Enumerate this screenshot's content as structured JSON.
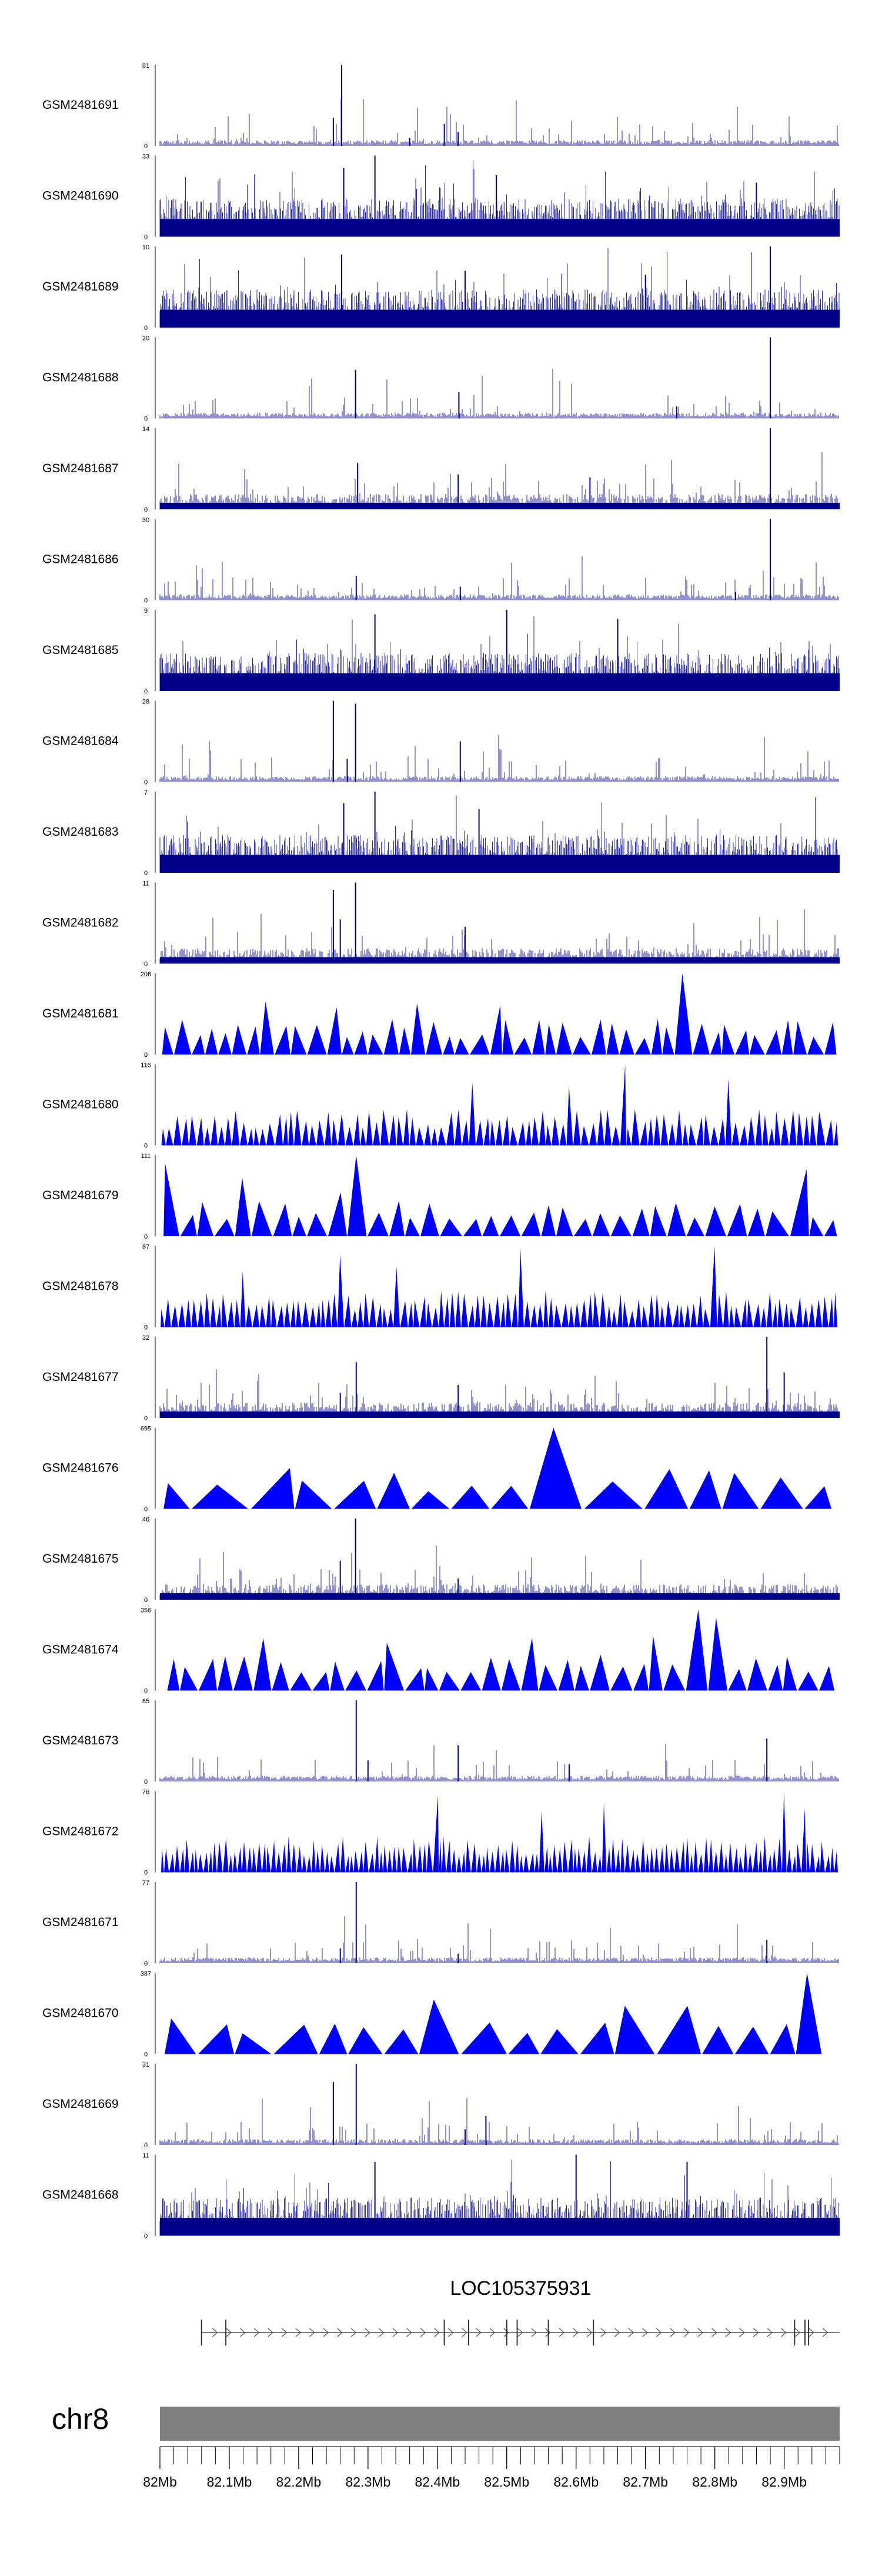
{
  "chart_data": {
    "type": "genome-track-area",
    "chromosome": "chr8",
    "x_range_mb": [
      82.0,
      82.98
    ],
    "x_ticks_mb": [
      82.0,
      82.1,
      82.2,
      82.3,
      82.4,
      82.5,
      82.6,
      82.7,
      82.8,
      82.9
    ],
    "x_tick_labels": [
      "82Mb",
      "82.1Mb",
      "82.2Mb",
      "82.3Mb",
      "82.4Mb",
      "82.5Mb",
      "82.6Mb",
      "82.7Mb",
      "82.8Mb",
      "82.9Mb"
    ],
    "gene": {
      "name": "LOC105375931",
      "start_mb": 82.06,
      "end_mb": 82.98,
      "strand": "+",
      "exons_mb": [
        82.06,
        82.095,
        82.41,
        82.445,
        82.5,
        82.515,
        82.56,
        82.625,
        82.915,
        82.93,
        82.935
      ]
    },
    "series": [
      {
        "name": "GSM2481691",
        "ymax": 81,
        "style": "spiky",
        "peaks": [
          [
            82.262,
            81
          ],
          [
            82.25,
            28
          ],
          [
            82.41,
            22
          ],
          [
            82.43,
            14
          ],
          [
            82.36,
            8
          ]
        ]
      },
      {
        "name": "GSM2481690",
        "ymax": 33,
        "style": "dense",
        "peaks": [
          [
            82.31,
            33
          ],
          [
            82.265,
            28
          ],
          [
            82.485,
            25
          ],
          [
            82.86,
            22
          ]
        ]
      },
      {
        "name": "GSM2481689",
        "ymax": 10,
        "style": "dense",
        "peaks": [
          [
            82.88,
            10
          ],
          [
            82.262,
            9
          ],
          [
            82.44,
            7
          ],
          [
            82.7,
            6.5
          ]
        ]
      },
      {
        "name": "GSM2481688",
        "ymax": 20,
        "style": "spiky",
        "peaks": [
          [
            82.88,
            20
          ],
          [
            82.282,
            12
          ],
          [
            82.431,
            6.5
          ],
          [
            82.745,
            3
          ]
        ]
      },
      {
        "name": "GSM2481687",
        "ymax": 14,
        "style": "noisy",
        "peaks": [
          [
            82.88,
            14
          ],
          [
            82.285,
            8
          ],
          [
            82.43,
            6
          ],
          [
            82.62,
            5.5
          ]
        ]
      },
      {
        "name": "GSM2481686",
        "ymax": 30,
        "style": "spiky",
        "peaks": [
          [
            82.88,
            30
          ],
          [
            82.283,
            9
          ],
          [
            82.433,
            5
          ],
          [
            82.83,
            3
          ]
        ]
      },
      {
        "name": "GSM2481685",
        "ymax": 9,
        "style": "dense",
        "peaks": [
          [
            82.5,
            9
          ],
          [
            82.31,
            8.5
          ],
          [
            82.66,
            8
          ]
        ]
      },
      {
        "name": "GSM2481684",
        "ymax": 28,
        "style": "spiky",
        "peaks": [
          [
            82.25,
            28
          ],
          [
            82.282,
            27
          ],
          [
            82.433,
            14
          ],
          [
            82.27,
            8
          ]
        ]
      },
      {
        "name": "GSM2481683",
        "ymax": 7,
        "style": "dense",
        "peaks": [
          [
            82.31,
            7
          ],
          [
            82.265,
            6
          ],
          [
            82.46,
            5.5
          ]
        ]
      },
      {
        "name": "GSM2481682",
        "ymax": 11,
        "style": "noisy",
        "peaks": [
          [
            82.282,
            11
          ],
          [
            82.25,
            10
          ],
          [
            82.26,
            6
          ],
          [
            82.44,
            5
          ]
        ]
      },
      {
        "name": "GSM2481681",
        "ymax": 206,
        "style": "triangles",
        "count": 46,
        "peaks": [
          [
            82.755,
            206
          ],
          [
            82.15,
            135
          ],
          [
            82.37,
            130
          ],
          [
            82.255,
            120
          ],
          [
            82.49,
            125
          ]
        ]
      },
      {
        "name": "GSM2481680",
        "ymax": 116,
        "style": "triangles",
        "count": 95,
        "peaks": [
          [
            82.67,
            116
          ],
          [
            82.82,
            95
          ],
          [
            82.45,
            90
          ],
          [
            82.59,
            85
          ]
        ]
      },
      {
        "name": "GSM2481679",
        "ymax": 111,
        "style": "triangles",
        "count": 36,
        "peaks": [
          [
            82.28,
            111
          ],
          [
            82.01,
            100
          ],
          [
            82.12,
            80
          ],
          [
            82.93,
            92
          ],
          [
            82.26,
            60
          ]
        ]
      },
      {
        "name": "GSM2481678",
        "ymax": 87,
        "style": "triangles",
        "count": 110,
        "peaks": [
          [
            82.8,
            87
          ],
          [
            82.52,
            84
          ],
          [
            82.26,
            78
          ],
          [
            82.12,
            60
          ],
          [
            82.34,
            65
          ]
        ]
      },
      {
        "name": "GSM2481677",
        "ymax": 32,
        "style": "noisy",
        "peaks": [
          [
            82.875,
            32
          ],
          [
            82.283,
            22
          ],
          [
            82.9,
            18
          ],
          [
            82.43,
            13
          ],
          [
            82.26,
            10
          ]
        ]
      },
      {
        "name": "GSM2481676",
        "ymax": 695,
        "style": "triangles",
        "count": 16,
        "peaks": [
          [
            82.56,
            695
          ],
          [
            82.18,
            350
          ],
          [
            82.79,
            330
          ],
          [
            82.735,
            340
          ],
          [
            82.01,
            220
          ]
        ]
      },
      {
        "name": "GSM2481675",
        "ymax": 46,
        "style": "noisy",
        "peaks": [
          [
            82.282,
            46
          ],
          [
            82.26,
            22
          ],
          [
            82.43,
            12
          ]
        ]
      },
      {
        "name": "GSM2481674",
        "ymax": 356,
        "style": "triangles",
        "count": 36,
        "peaks": [
          [
            82.775,
            356
          ],
          [
            82.805,
            320
          ],
          [
            82.71,
            240
          ],
          [
            82.535,
            230
          ],
          [
            82.15,
            230
          ],
          [
            82.33,
            210
          ]
        ]
      },
      {
        "name": "GSM2481673",
        "ymax": 85,
        "style": "spiky",
        "peaks": [
          [
            82.283,
            85
          ],
          [
            82.875,
            45
          ],
          [
            82.43,
            38
          ],
          [
            82.3,
            22
          ],
          [
            82.59,
            18
          ]
        ]
      },
      {
        "name": "GSM2481672",
        "ymax": 76,
        "style": "triangles",
        "count": 140,
        "peaks": [
          [
            82.9,
            76
          ],
          [
            82.4,
            72
          ],
          [
            82.64,
            65
          ],
          [
            82.93,
            60
          ],
          [
            82.55,
            58
          ]
        ]
      },
      {
        "name": "GSM2481671",
        "ymax": 77,
        "style": "spiky",
        "peaks": [
          [
            82.283,
            77
          ],
          [
            82.875,
            22
          ],
          [
            82.26,
            14
          ],
          [
            82.43,
            9
          ]
        ]
      },
      {
        "name": "GSM2481670",
        "ymax": 387,
        "style": "triangles",
        "count": 18,
        "peaks": [
          [
            82.93,
            387
          ],
          [
            82.66,
            270
          ],
          [
            82.39,
            260
          ],
          [
            82.76,
            230
          ],
          [
            82.67,
            230
          ]
        ]
      },
      {
        "name": "GSM2481669",
        "ymax": 31,
        "style": "spiky",
        "peaks": [
          [
            82.283,
            31
          ],
          [
            82.25,
            24
          ],
          [
            82.47,
            11
          ],
          [
            82.44,
            6
          ]
        ]
      },
      {
        "name": "GSM2481668",
        "ymax": 11,
        "style": "dense",
        "peaks": [
          [
            82.6,
            11
          ],
          [
            82.31,
            10
          ],
          [
            82.76,
            10
          ]
        ]
      }
    ]
  },
  "colors": {
    "track_fill": "#0000ff",
    "track_dark": "#00008b",
    "ideogram": "#808080",
    "axis": "#000000",
    "gene_line": "#555555"
  }
}
